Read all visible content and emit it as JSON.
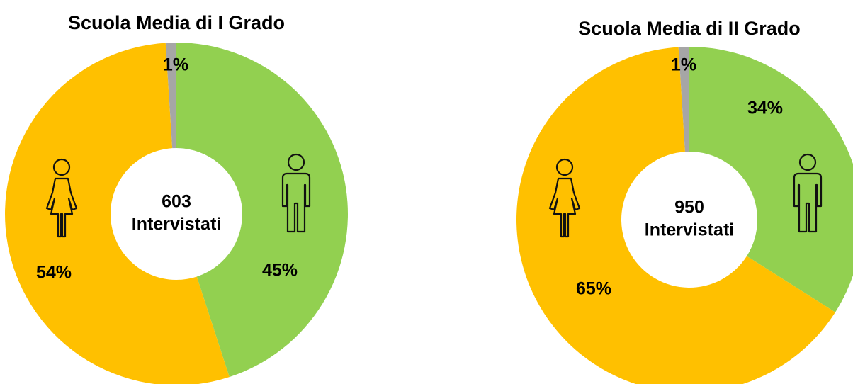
{
  "chart_data": [
    {
      "type": "pie",
      "donut": true,
      "title": "Scuola Media di I Grado",
      "center_lines": [
        "603",
        "Intervistati"
      ],
      "values": [
        45,
        54,
        1
      ],
      "value_labels": [
        "45%",
        "54%",
        "1%"
      ],
      "colors": [
        "#92d050",
        "#ffc000",
        "#a6a6a6"
      ]
    },
    {
      "type": "pie",
      "donut": true,
      "title": "Scuola Media di II Grado",
      "center_lines": [
        "950",
        "Intervistati"
      ],
      "values": [
        34,
        65,
        1
      ],
      "value_labels": [
        "34%",
        "65%",
        "1%"
      ],
      "colors": [
        "#92d050",
        "#ffc000",
        "#a6a6a6"
      ]
    }
  ]
}
